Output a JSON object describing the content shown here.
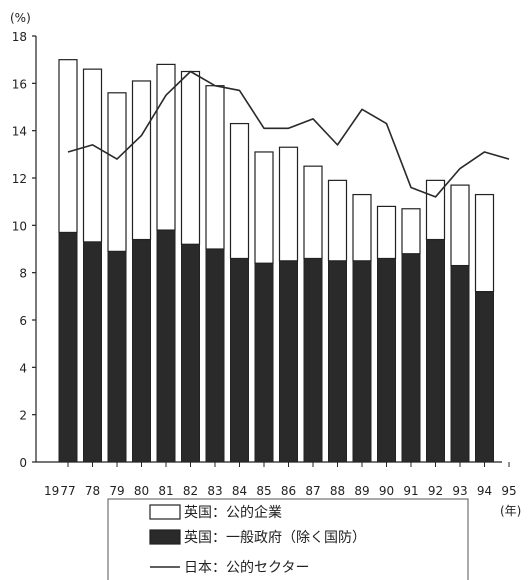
{
  "chart_data": {
    "type": "bar",
    "yunit": "(%)",
    "xunit": "(年)",
    "x_prefix": "19",
    "ylim": [
      0,
      18
    ],
    "yticks": [
      0,
      2,
      4,
      6,
      8,
      10,
      12,
      14,
      16,
      18
    ],
    "categories": [
      "77",
      "78",
      "79",
      "80",
      "81",
      "82",
      "83",
      "84",
      "85",
      "86",
      "87",
      "88",
      "89",
      "90",
      "91",
      "92",
      "93",
      "94",
      "95"
    ],
    "series": [
      {
        "name": "英国：一般政府（除く国防）",
        "kind": "bar-bottom",
        "color": "#2a2a2a",
        "values": [
          9.7,
          9.3,
          8.9,
          9.4,
          9.8,
          9.2,
          9.0,
          8.6,
          8.4,
          8.5,
          8.6,
          8.5,
          8.5,
          8.6,
          8.8,
          9.4,
          8.3,
          7.2,
          null
        ]
      },
      {
        "name": "英国：公的企業",
        "kind": "bar-top",
        "color": "#ffffff",
        "values": [
          7.3,
          7.3,
          6.7,
          6.7,
          7.0,
          7.3,
          6.9,
          5.7,
          4.7,
          4.8,
          3.9,
          3.4,
          2.8,
          2.2,
          1.9,
          2.5,
          3.4,
          4.1,
          null
        ]
      },
      {
        "name": "日本：公的セクター",
        "kind": "line",
        "color": "#2a2a2a",
        "values": [
          13.1,
          13.4,
          12.8,
          13.8,
          15.5,
          16.5,
          15.9,
          15.7,
          14.1,
          14.1,
          14.5,
          13.4,
          14.9,
          14.3,
          11.6,
          11.2,
          12.4,
          13.1,
          12.8
        ]
      }
    ],
    "legend_order": [
      "英国：公的企業",
      "英国：一般政府（除く国防）",
      "日本：公的セクター"
    ],
    "legend_position": "bottom"
  }
}
